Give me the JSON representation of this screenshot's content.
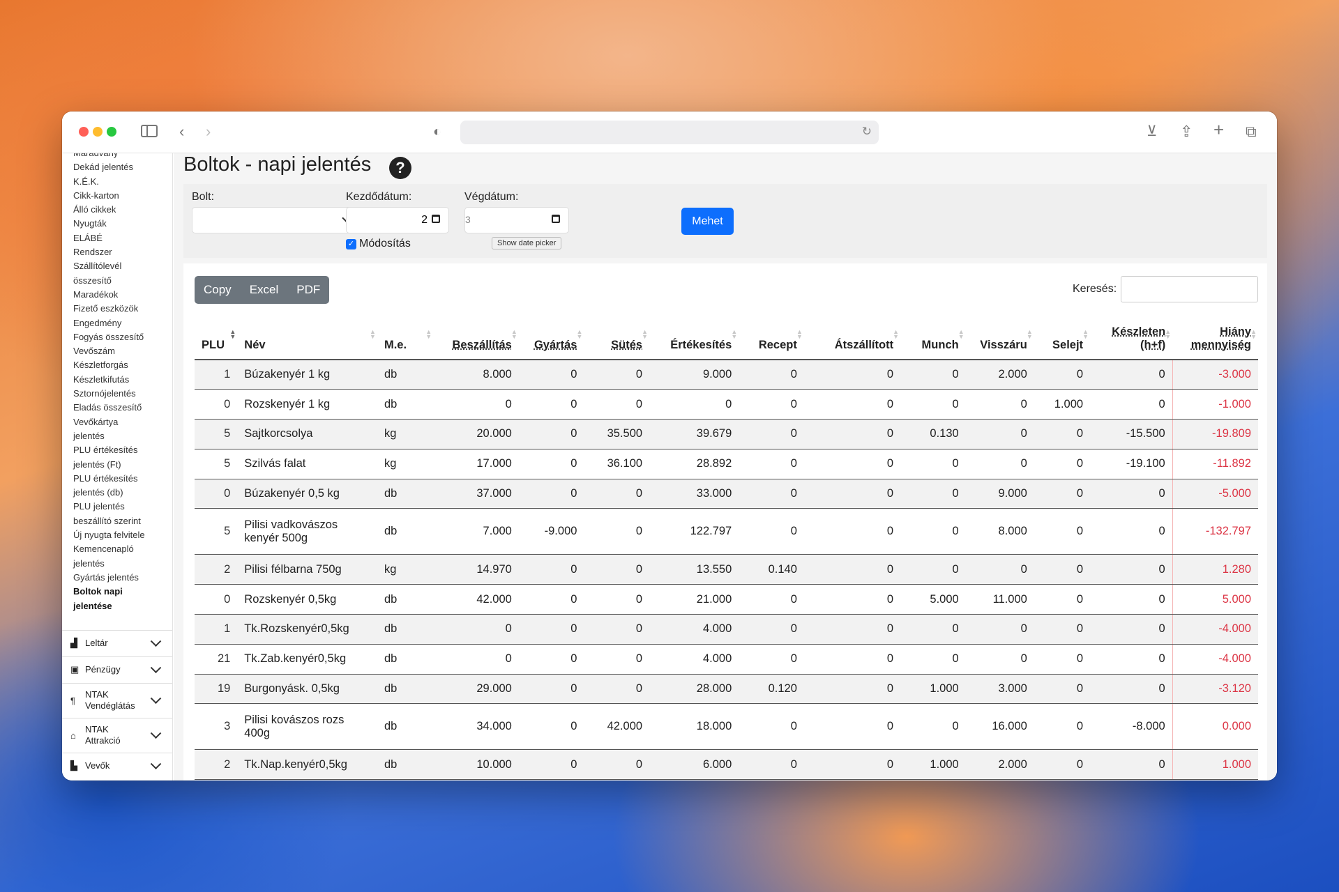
{
  "sidebar": {
    "links": [
      "Maradvány",
      "Dekád jelentés",
      "K.É.K.",
      "Cikk-karton",
      "Álló cikkek",
      "Nyugták",
      "ELÁBÉ",
      "Rendszer",
      "Szállítólevél",
      "összesítő",
      "Maradékok",
      "Fizető eszközök",
      "Engedmény",
      "Fogyás összesítő",
      "Vevőszám",
      "Készletforgás",
      "Készletkifutás",
      "Sztornójelentés",
      "Eladás összesítő",
      "Vevőkártya",
      "jelentés",
      "PLU értékesítés",
      "jelentés (Ft)",
      "PLU értékesítés",
      "jelentés (db)",
      "PLU jelentés",
      "beszállító szerint",
      "Új nyugta felvitele",
      "Kemencenapló",
      "jelentés",
      "Gyártás jelentés"
    ],
    "active_line1": "Boltok napi",
    "active_line2": "jelentése",
    "sections": [
      {
        "icon": "boxes-icon",
        "glyph": "▟",
        "line1": "Leltár",
        "line2": ""
      },
      {
        "icon": "money-icon",
        "glyph": "▣",
        "line1": "Pénzügy",
        "line2": ""
      },
      {
        "icon": "fork-knife-icon",
        "glyph": "¶",
        "line1": "NTAK",
        "line2": "Vendéglátás"
      },
      {
        "icon": "museum-icon",
        "glyph": "⌂",
        "line1": "NTAK",
        "line2": "Attrakció"
      },
      {
        "icon": "chart-icon",
        "glyph": "▙",
        "line1": "Vevők",
        "line2": ""
      }
    ]
  },
  "page": {
    "title": "Boltok - napi jelentés",
    "help": "?"
  },
  "filter": {
    "store_label": "Bolt:",
    "start_label": "Kezdődátum:",
    "start_value": "2",
    "end_label": "Végdátum:",
    "end_value": "3",
    "modify_label": "Módosítás",
    "go_button": "Mehet",
    "tooltip": "Show date picker"
  },
  "table_controls": {
    "copy": "Copy",
    "excel": "Excel",
    "pdf": "PDF",
    "search_label": "Keresés:"
  },
  "columns": [
    {
      "l1": "",
      "l2": "PLU",
      "align": "l",
      "u": false
    },
    {
      "l1": "",
      "l2": "Név",
      "align": "l",
      "u": false
    },
    {
      "l1": "",
      "l2": "M.e.",
      "align": "l",
      "u": false
    },
    {
      "l1": "",
      "l2": "Beszállítás",
      "align": "r",
      "u": true
    },
    {
      "l1": "",
      "l2": "Gyártás",
      "align": "r",
      "u": true
    },
    {
      "l1": "",
      "l2": "Sütés",
      "align": "r",
      "u": true
    },
    {
      "l1": "",
      "l2": "Értékesítés",
      "align": "r",
      "u": false
    },
    {
      "l1": "",
      "l2": "Recept",
      "align": "r",
      "u": false
    },
    {
      "l1": "",
      "l2": "Átszállított",
      "align": "r",
      "u": false
    },
    {
      "l1": "",
      "l2": "Munch",
      "align": "r",
      "u": false
    },
    {
      "l1": "",
      "l2": "Visszáru",
      "align": "r",
      "u": false
    },
    {
      "l1": "",
      "l2": "Selejt",
      "align": "r",
      "u": false
    },
    {
      "l1": "Készleten",
      "l2": "(h+f)",
      "align": "r",
      "u": true
    },
    {
      "l1": "Hiány",
      "l2": "mennyiség",
      "align": "r",
      "u": true
    }
  ],
  "rows": [
    [
      "1",
      "Búzakenyér 1 kg",
      "db",
      "8.000",
      "0",
      "0",
      "9.000",
      "0",
      "0",
      "0",
      "2.000",
      "0",
      "0",
      "-3.000"
    ],
    [
      "0",
      "Rozskenyér 1 kg",
      "db",
      "0",
      "0",
      "0",
      "0",
      "0",
      "0",
      "0",
      "0",
      "1.000",
      "0",
      "-1.000"
    ],
    [
      "5",
      "Sajtkorcsolya",
      "kg",
      "20.000",
      "0",
      "35.500",
      "39.679",
      "0",
      "0",
      "0.130",
      "0",
      "0",
      "-15.500",
      "-19.809"
    ],
    [
      "5",
      "Szilvás falat",
      "kg",
      "17.000",
      "0",
      "36.100",
      "28.892",
      "0",
      "0",
      "0",
      "0",
      "0",
      "-19.100",
      "-11.892"
    ],
    [
      "0",
      "Búzakenyér 0,5 kg",
      "db",
      "37.000",
      "0",
      "0",
      "33.000",
      "0",
      "0",
      "0",
      "9.000",
      "0",
      "0",
      "-5.000"
    ],
    [
      "5",
      "Pilisi vadkovászos kenyér 500g",
      "db",
      "7.000",
      "-9.000",
      "0",
      "122.797",
      "0",
      "0",
      "0",
      "8.000",
      "0",
      "0",
      "-132.797"
    ],
    [
      "2",
      "Pilisi félbarna 750g",
      "kg",
      "14.970",
      "0",
      "0",
      "13.550",
      "0.140",
      "0",
      "0",
      "0",
      "0",
      "0",
      "1.280"
    ],
    [
      "0",
      "Rozskenyér 0,5kg",
      "db",
      "42.000",
      "0",
      "0",
      "21.000",
      "0",
      "0",
      "5.000",
      "11.000",
      "0",
      "0",
      "5.000"
    ],
    [
      "1",
      "Tk.Rozskenyér0,5kg",
      "db",
      "0",
      "0",
      "0",
      "4.000",
      "0",
      "0",
      "0",
      "0",
      "0",
      "0",
      "-4.000"
    ],
    [
      "21",
      "Tk.Zab.kenyér0,5kg",
      "db",
      "0",
      "0",
      "0",
      "4.000",
      "0",
      "0",
      "0",
      "0",
      "0",
      "0",
      "-4.000"
    ],
    [
      "19",
      "Burgonyásk. 0,5kg",
      "db",
      "29.000",
      "0",
      "0",
      "28.000",
      "0.120",
      "0",
      "1.000",
      "3.000",
      "0",
      "0",
      "-3.120"
    ],
    [
      "3",
      "Pilisi kovászos rozs 400g",
      "db",
      "34.000",
      "0",
      "42.000",
      "18.000",
      "0",
      "0",
      "0",
      "16.000",
      "0",
      "-8.000",
      "0.000"
    ],
    [
      "2",
      "Tk.Nap.kenyér0,5kg",
      "db",
      "10.000",
      "0",
      "0",
      "6.000",
      "0",
      "0",
      "1.000",
      "2.000",
      "0",
      "0",
      "1.000"
    ]
  ]
}
